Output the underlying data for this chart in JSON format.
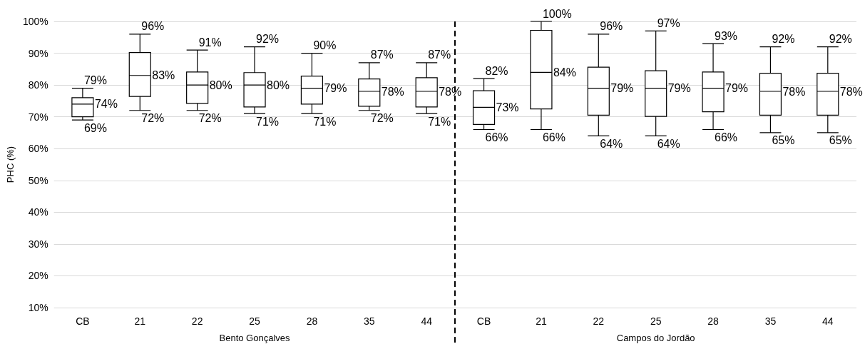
{
  "chart_data": {
    "type": "box",
    "ylabel": "PHC (%)",
    "categories": [
      "CB",
      "21",
      "22",
      "25",
      "28",
      "35",
      "44",
      "CB",
      "21",
      "22",
      "25",
      "28",
      "35",
      "44"
    ],
    "boxes": [
      {
        "low": 69,
        "q1": 70,
        "median": 74,
        "q3": 76,
        "high": 79
      },
      {
        "low": 72,
        "q1": 76.4,
        "median": 83,
        "q3": 90.2,
        "high": 96
      },
      {
        "low": 72,
        "q1": 74.2,
        "median": 80,
        "q3": 84.1,
        "high": 91
      },
      {
        "low": 71,
        "q1": 73.1,
        "median": 80,
        "q3": 83.9,
        "high": 92
      },
      {
        "low": 71,
        "q1": 74,
        "median": 79,
        "q3": 82.8,
        "high": 90
      },
      {
        "low": 72,
        "q1": 73.3,
        "median": 78,
        "q3": 81.9,
        "high": 87
      },
      {
        "low": 71,
        "q1": 73.1,
        "median": 78,
        "q3": 82.3,
        "high": 87
      },
      {
        "low": 66,
        "q1": 67.6,
        "median": 73,
        "q3": 78.2,
        "high": 82
      },
      {
        "low": 66,
        "q1": 72.5,
        "median": 84,
        "q3": 97.2,
        "high": 100
      },
      {
        "low": 64,
        "q1": 70.5,
        "median": 79,
        "q3": 85.6,
        "high": 96
      },
      {
        "low": 64,
        "q1": 70.1,
        "median": 79,
        "q3": 84.5,
        "high": 97
      },
      {
        "low": 66,
        "q1": 71.6,
        "median": 79,
        "q3": 84.1,
        "high": 93
      },
      {
        "low": 65,
        "q1": 70.5,
        "median": 78,
        "q3": 83.7,
        "high": 92
      },
      {
        "low": 65,
        "q1": 70.5,
        "median": 78,
        "q3": 83.7,
        "high": 92
      }
    ],
    "ylim": [
      10,
      100
    ],
    "yticks": [
      {
        "value": 10,
        "label": "10%"
      },
      {
        "value": 20,
        "label": "20%"
      },
      {
        "value": 30,
        "label": "30%"
      },
      {
        "value": 40,
        "label": "40%"
      },
      {
        "value": 50,
        "label": "50%"
      },
      {
        "value": 60,
        "label": "60%"
      },
      {
        "value": 70,
        "label": "70%"
      },
      {
        "value": 80,
        "label": "80%"
      },
      {
        "value": 90,
        "label": "90%"
      },
      {
        "value": 100,
        "label": "100%"
      }
    ],
    "grid": "y",
    "value_labels": [
      {
        "low": "69%",
        "median": "74%",
        "high": "79%"
      },
      {
        "low": "72%",
        "median": "83%",
        "high": "96%"
      },
      {
        "low": "72%",
        "median": "80%",
        "high": "91%"
      },
      {
        "low": "71%",
        "median": "80%",
        "high": "92%"
      },
      {
        "low": "71%",
        "median": "79%",
        "high": "90%"
      },
      {
        "low": "72%",
        "median": "78%",
        "high": "87%"
      },
      {
        "low": "71%",
        "median": "78%",
        "high": "87%"
      },
      {
        "low": "66%",
        "median": "73%",
        "high": "82%"
      },
      {
        "low": "66%",
        "median": "84%",
        "high": "100%"
      },
      {
        "low": "64%",
        "median": "79%",
        "high": "96%"
      },
      {
        "low": "64%",
        "median": "79%",
        "high": "97%"
      },
      {
        "low": "66%",
        "median": "79%",
        "high": "93%"
      },
      {
        "low": "65%",
        "median": "78%",
        "high": "92%"
      },
      {
        "low": "65%",
        "median": "78%",
        "high": "92%"
      }
    ],
    "annotations": [
      "Bento Gonçalves",
      "Campos do Jordão"
    ]
  }
}
